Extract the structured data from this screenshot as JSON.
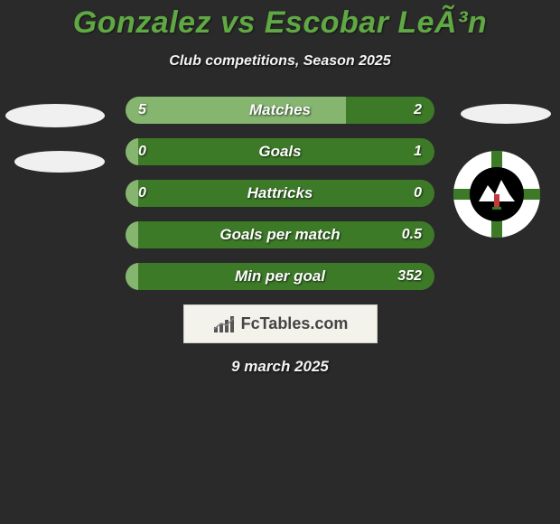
{
  "title": "Gonzalez vs Escobar LeÃ³n",
  "subtitle": "Club competitions, Season 2025",
  "date": "9 march 2025",
  "branding_text": "FcTables.com",
  "colors": {
    "title_color": "#5fa843",
    "bar_right_fill": "#3d7a28",
    "bar_left_fill": "#85b56f",
    "background": "#2a2a2a",
    "text": "#f5f5f5"
  },
  "bars": [
    {
      "label": "Matches",
      "left_val": "5",
      "right_val": "2",
      "left_pct": 71.4
    },
    {
      "label": "Goals",
      "left_val": "0",
      "right_val": "1",
      "left_pct": 4.0
    },
    {
      "label": "Hattricks",
      "left_val": "0",
      "right_val": "0",
      "left_pct": 4.0
    },
    {
      "label": "Goals per match",
      "left_val": "",
      "right_val": "0.5",
      "left_pct": 4.0
    },
    {
      "label": "Min per goal",
      "left_val": "",
      "right_val": "352",
      "left_pct": 4.0
    }
  ],
  "club_badge": {
    "name": "club-badge",
    "outer_color": "#ffffff",
    "cross_color": "#3d7a28",
    "center_color": "#000000",
    "mountain_color": "#ffffff"
  }
}
